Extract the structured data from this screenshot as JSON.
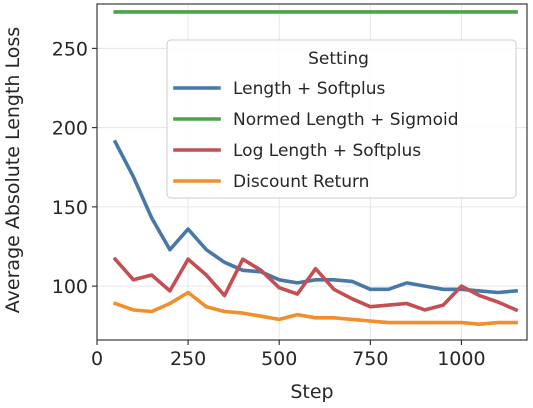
{
  "chart_data": {
    "type": "line",
    "xlabel": "Step",
    "ylabel": "Average Absolute Length Loss",
    "xlim": [
      0,
      1180
    ],
    "ylim": [
      66,
      278
    ],
    "xticks": [
      0,
      250,
      500,
      750,
      1000
    ],
    "yticks": [
      100,
      150,
      200,
      250
    ],
    "grid": true,
    "legend": {
      "title": "Setting",
      "placement": "top-right"
    },
    "series": [
      {
        "name": "Length + Softplus",
        "color": "#4878a8",
        "x": [
          50,
          100,
          150,
          200,
          250,
          300,
          350,
          400,
          450,
          500,
          550,
          600,
          650,
          700,
          750,
          800,
          850,
          900,
          950,
          1000,
          1050,
          1100,
          1150
        ],
        "y": [
          191,
          169,
          143,
          123,
          136,
          123,
          115,
          110,
          109,
          104,
          102,
          104,
          104,
          103,
          98,
          98,
          102,
          100,
          98,
          98,
          97,
          96,
          97
        ]
      },
      {
        "name": "Normed Length + Sigmoid",
        "color": "#4ea24e",
        "x": [
          50,
          1150
        ],
        "y": [
          273,
          273
        ]
      },
      {
        "name": "Log Length + Softplus",
        "color": "#c44e52",
        "x": [
          50,
          100,
          150,
          200,
          250,
          300,
          350,
          400,
          450,
          500,
          550,
          600,
          650,
          700,
          750,
          800,
          850,
          900,
          950,
          1000,
          1050,
          1100,
          1150
        ],
        "y": [
          117,
          104,
          107,
          97,
          117,
          107,
          94,
          117,
          110,
          99,
          95,
          111,
          98,
          92,
          87,
          88,
          89,
          85,
          88,
          100,
          94,
          90,
          85
        ]
      },
      {
        "name": "Discount Return",
        "color": "#f28e2b",
        "x": [
          50,
          100,
          150,
          200,
          250,
          300,
          350,
          400,
          450,
          500,
          550,
          600,
          650,
          700,
          750,
          800,
          850,
          900,
          950,
          1000,
          1050,
          1100,
          1150
        ],
        "y": [
          89,
          85,
          84,
          89,
          96,
          87,
          84,
          83,
          81,
          79,
          82,
          80,
          80,
          79,
          78,
          77,
          77,
          77,
          77,
          77,
          76,
          77,
          77
        ]
      }
    ]
  }
}
